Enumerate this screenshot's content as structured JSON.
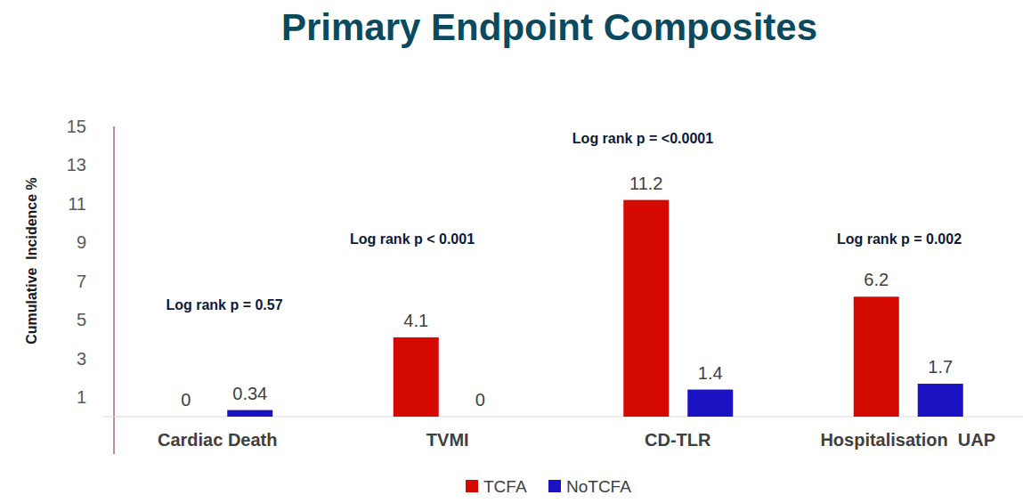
{
  "chart_data": {
    "type": "bar",
    "title": "Primary Endpoint Composites",
    "y_label": "Cumulative  Incidence %",
    "categories": [
      "Cardiac Death",
      "TVMI",
      "CD-TLR",
      "Hospitalisation  UAP"
    ],
    "series": [
      {
        "name": "TCFA",
        "color": "#d40a00",
        "values": [
          0,
          4.1,
          11.2,
          6.2
        ]
      },
      {
        "name": "NoTCFA",
        "color": "#1b12c2",
        "values": [
          0.34,
          0,
          1.4,
          1.7
        ]
      }
    ],
    "annotations": [
      "Log rank p = 0.57",
      "Log rank p < 0.001",
      "Log rank p = <0.0001",
      "Log rank p = 0.002"
    ],
    "ylim": [
      0,
      15
    ],
    "yticks": [
      1,
      3,
      5,
      7,
      9,
      11,
      13,
      15
    ],
    "grid": false,
    "data_labels": true,
    "legend": "bottom"
  }
}
